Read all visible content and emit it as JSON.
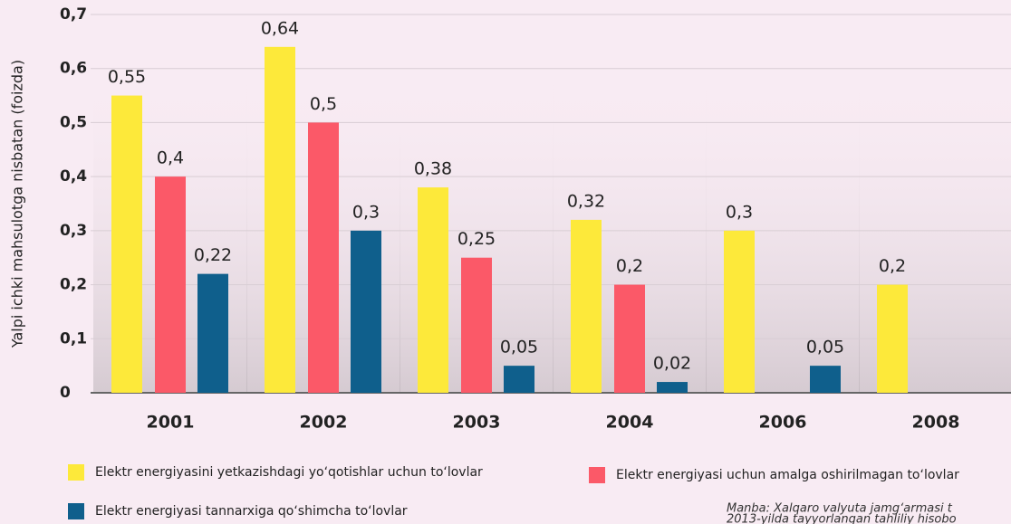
{
  "chart_data": {
    "type": "bar",
    "y_label": "Yalpi ichki mahsulotga nisbatan (foizda)",
    "categories": [
      "2001",
      "2002",
      "2003",
      "2004",
      "2006",
      "2008"
    ],
    "series": [
      {
        "name": "Elektr energiyasini yetkazishdagi yo‘qotishlar uchun to‘lovlar",
        "color": "#fde93a",
        "values": [
          0.55,
          0.64,
          0.38,
          0.32,
          0.3,
          0.2
        ],
        "value_labels": [
          "0,55",
          "0,64",
          "0,38",
          "0,32",
          "0,3",
          "0,2"
        ]
      },
      {
        "name": "Elektr energiyasi uchun amalga oshirilmagan to‘lovlar",
        "color": "#fb5968",
        "values": [
          0.4,
          0.5,
          0.25,
          0.2,
          null,
          null
        ],
        "value_labels": [
          "0,4",
          "0,5",
          "0,25",
          "0,2",
          null,
          null
        ]
      },
      {
        "name": "Elektr energiyasi tannarxiga qo‘shimcha to‘lovlar",
        "color": "#0f5f8c",
        "values": [
          0.22,
          0.3,
          0.05,
          0.02,
          0.05,
          null
        ],
        "value_labels": [
          "0,22",
          "0,3",
          "0,05",
          "0,02",
          "0,05",
          null
        ]
      }
    ],
    "ylim": [
      0,
      0.7
    ],
    "yticks": [
      0,
      {
        "value": 0.1,
        "label": "0,1"
      },
      {
        "value": 0.2,
        "label": "0,2"
      },
      {
        "value": 0.3,
        "label": "0,3"
      },
      {
        "value": 0.4,
        "label": "0,4"
      },
      {
        "value": 0.5,
        "label": "0,5"
      },
      {
        "value": 0.6,
        "label": "0,6"
      },
      {
        "value": 0.7,
        "label": "0,7"
      }
    ],
    "grid": true,
    "legend": "bottom",
    "source": [
      "Manba: Xalqaro valyuta jamg‘armasi t",
      "2013-yilda tayyorlangan tahliliy hisobo"
    ]
  }
}
